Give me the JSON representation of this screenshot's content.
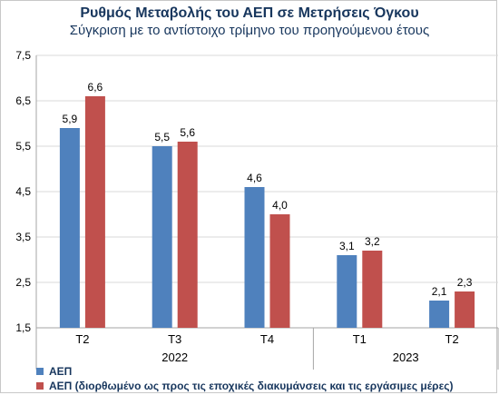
{
  "chart_data": {
    "type": "bar",
    "title": "Ρυθμός Μεταβολής του ΑΕΠ σε Μετρήσεις Όγκου",
    "subtitle": "Σύγκριση με το αντίστοιχο τρίμηνο του προηγούμενου έτους",
    "categories": [
      "Τ2",
      "Τ3",
      "Τ4",
      "Τ1",
      "Τ2"
    ],
    "groups": [
      {
        "label": "2022",
        "span": [
          0,
          2
        ]
      },
      {
        "label": "2023",
        "span": [
          3,
          4
        ]
      }
    ],
    "series": [
      {
        "name": "ΑΕΠ",
        "color": "#4f81bd",
        "values": [
          5.9,
          5.5,
          4.6,
          3.1,
          2.1
        ],
        "labels": [
          "5,9",
          "5,5",
          "4,6",
          "3,1",
          "2,1"
        ]
      },
      {
        "name": "ΑΕΠ (διορθωμένο ως προς τις εποχικές διακυμάνσεις και τις εργάσιμες μέρες)",
        "color": "#c0504d",
        "values": [
          6.6,
          5.6,
          4.0,
          3.2,
          2.3
        ],
        "labels": [
          "6,6",
          "5,6",
          "4,0",
          "3,2",
          "2,3"
        ]
      }
    ],
    "ylim": [
      1.5,
      7.5
    ],
    "yticks": [
      1.5,
      2.5,
      3.5,
      4.5,
      5.5,
      6.5,
      7.5
    ],
    "ytick_labels": [
      "1,5",
      "2,5",
      "3,5",
      "4,5",
      "5,5",
      "6,5",
      "7,5"
    ],
    "grid": true,
    "legend_position": "bottom-left"
  }
}
